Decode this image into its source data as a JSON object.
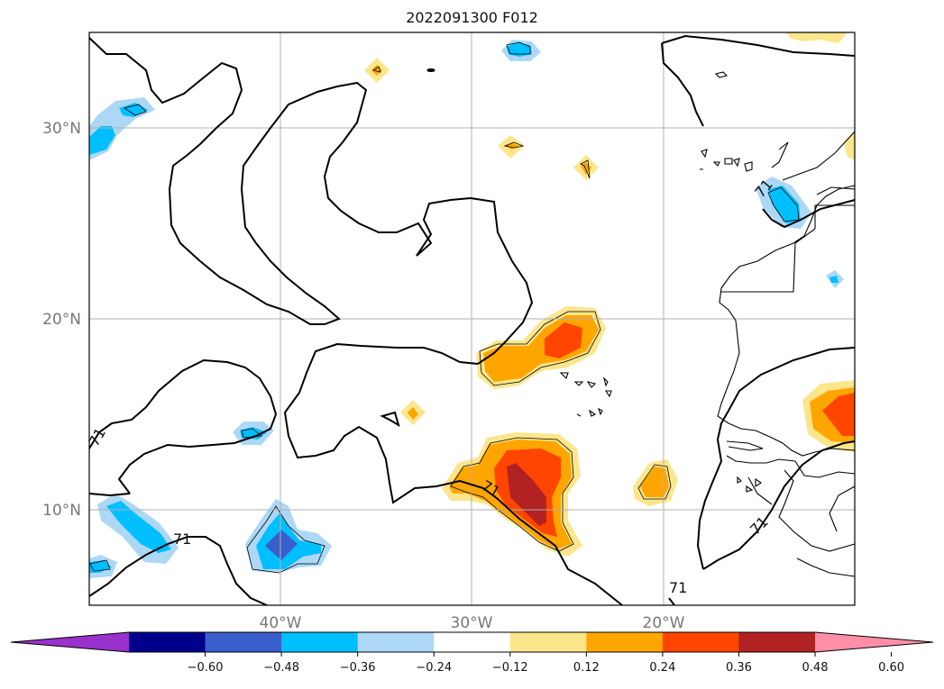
{
  "title": "2022091300 F012",
  "map": {
    "lat_ticks": [
      "30°N",
      "20°N",
      "10°N"
    ],
    "lon_ticks": [
      "40°W",
      "30°W",
      "20°W"
    ],
    "contour_level": "71",
    "gridlines": true
  },
  "colorbar": {
    "ticks": [
      "−0.60",
      "−0.48",
      "−0.36",
      "−0.24",
      "−0.12",
      "0.12",
      "0.24",
      "0.36",
      "0.48",
      "0.60"
    ],
    "colors": [
      "#9932cc",
      "#00008b",
      "#3a5fcd",
      "#00bfff",
      "#add8f5",
      "#ffffff",
      "#fbe68c",
      "#ffa500",
      "#ff4500",
      "#b22222",
      "#ff8fa8"
    ],
    "extend": "both"
  }
}
